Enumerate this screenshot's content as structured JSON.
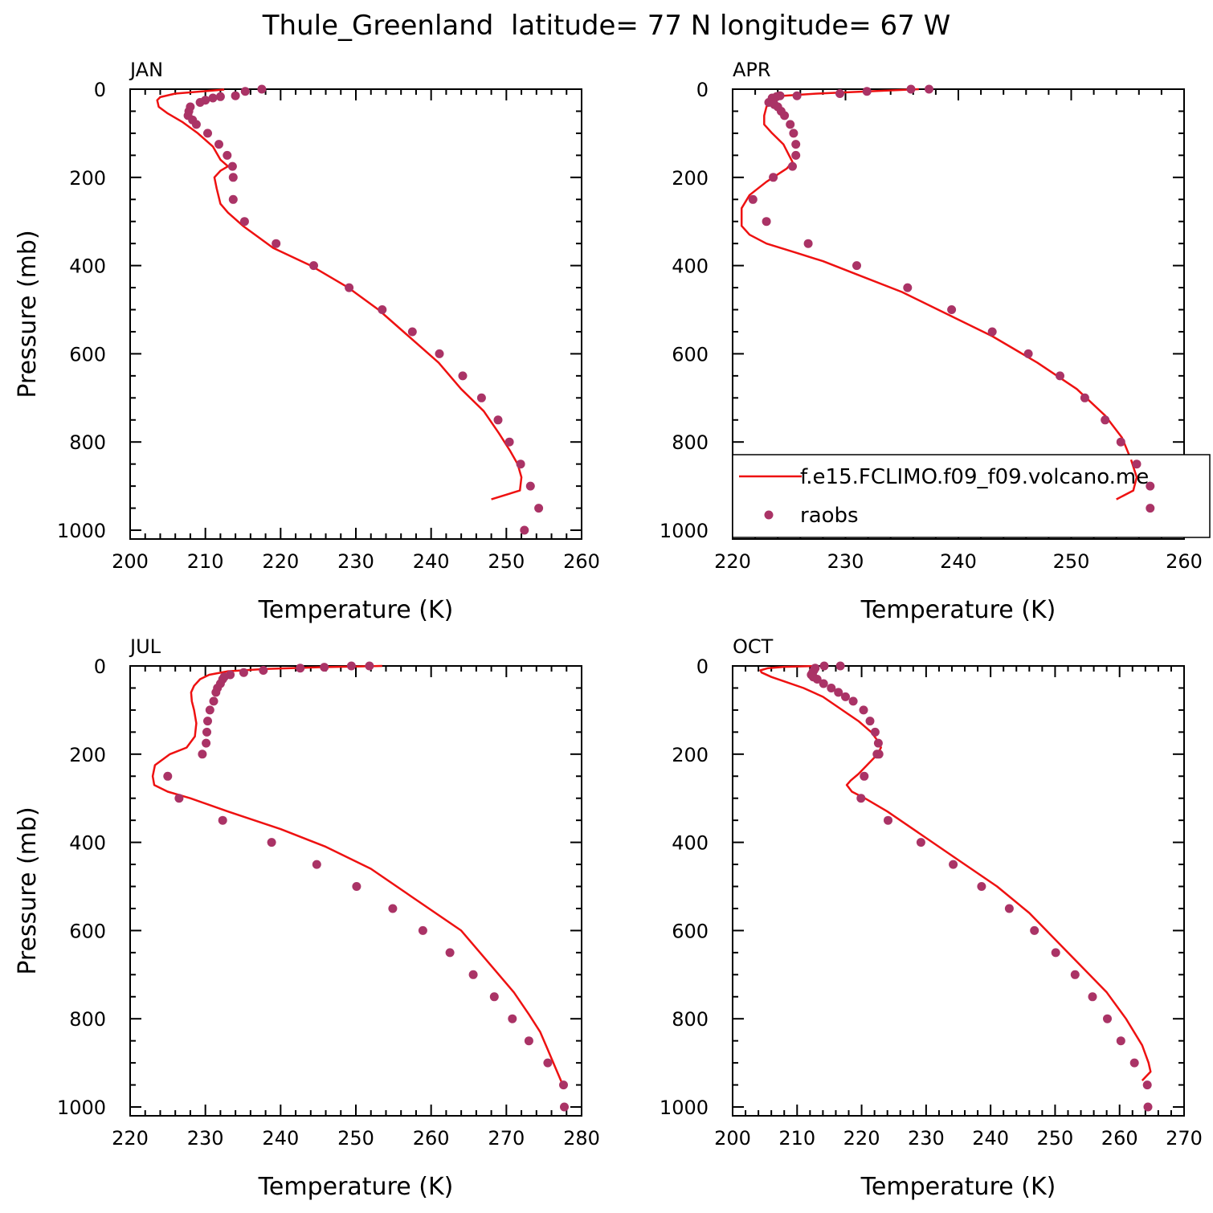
{
  "title": "Thule_Greenland  latitude= 77 N longitude= 67 W",
  "colors": {
    "model": "#ee1111",
    "obs": "#aa3366",
    "axis": "#000000"
  },
  "chart_data": [
    {
      "type": "line",
      "panel": "JAN",
      "xlabel": "Temperature (K)",
      "ylabel": "Pressure (mb)",
      "xlim": [
        200,
        260
      ],
      "ylim": [
        1020,
        0
      ],
      "xticks": [
        200,
        210,
        220,
        230,
        240,
        250,
        260
      ],
      "yticks": [
        0,
        200,
        400,
        600,
        800,
        1000
      ],
      "xtick_labels": [
        "200",
        "210",
        "220",
        "230",
        "240",
        "250",
        "260"
      ],
      "ytick_labels": [
        "0",
        "200",
        "400",
        "600",
        "800",
        "1000"
      ],
      "series": [
        {
          "name": "f.e15.FCLIMO.f09_f09.volcano.me",
          "kind": "line",
          "x": [
            212.5,
            206,
            204,
            203.6,
            203.8,
            205,
            207,
            209,
            211,
            212,
            213,
            212,
            211.2,
            211.5,
            212,
            213,
            215,
            219,
            224,
            229,
            233,
            237,
            241,
            244,
            247,
            249,
            250.5,
            251.5,
            252,
            251.8,
            248
          ],
          "y": [
            1,
            10,
            18,
            25,
            40,
            55,
            75,
            100,
            130,
            160,
            175,
            185,
            200,
            225,
            260,
            280,
            310,
            360,
            400,
            450,
            500,
            560,
            620,
            680,
            730,
            780,
            820,
            850,
            880,
            910,
            930
          ]
        },
        {
          "name": "raobs",
          "kind": "scatter",
          "x": [
            217.5,
            215.3,
            214,
            212,
            211,
            210,
            209.3,
            208,
            207.8,
            207.7,
            208.3,
            208.8,
            210.3,
            211.8,
            212.9,
            213.6,
            213.7,
            213.7,
            215.2,
            219.4,
            224.4,
            229.1,
            233.5,
            237.5,
            241.1,
            244.2,
            246.7,
            248.9,
            250.4,
            251.9,
            253.2,
            254.3,
            252.4
          ],
          "y": [
            0,
            5,
            15,
            17,
            20,
            25,
            30,
            40,
            50,
            60,
            70,
            80,
            100,
            125,
            150,
            175,
            200,
            250,
            300,
            350,
            400,
            450,
            500,
            550,
            600,
            650,
            700,
            750,
            800,
            850,
            900,
            950,
            1000
          ]
        }
      ]
    },
    {
      "type": "line",
      "panel": "APR",
      "xlabel": "Temperature (K)",
      "ylabel": "",
      "xlim": [
        220,
        260
      ],
      "ylim": [
        1020,
        0
      ],
      "xticks": [
        220,
        230,
        240,
        250,
        260
      ],
      "yticks": [
        0,
        200,
        400,
        600,
        800,
        1000
      ],
      "xtick_labels": [
        "220",
        "230",
        "240",
        "250",
        "260"
      ],
      "ytick_labels": [
        "0",
        "200",
        "400",
        "600",
        "800",
        "1000"
      ],
      "legend": {
        "position": "bottom-right",
        "entries": [
          "f.e15.FCLIMO.f09_f09.volcano.me",
          "raobs"
        ]
      },
      "series": [
        {
          "name": "f.e15.FCLIMO.f09_f09.volcano.me",
          "kind": "line",
          "x": [
            236.5,
            232,
            227.5,
            224.5,
            223.5,
            223,
            222.8,
            222.8,
            223.5,
            224.5,
            225,
            225.3,
            224.8,
            223,
            221.5,
            220.8,
            220.8,
            221.5,
            223,
            225.5,
            228,
            231,
            235,
            239,
            243,
            247,
            250.5,
            253,
            254.5,
            255.3,
            255.8,
            255.5,
            254
          ],
          "y": [
            0,
            5,
            10,
            15,
            25,
            40,
            60,
            80,
            100,
            125,
            150,
            165,
            180,
            210,
            240,
            270,
            310,
            330,
            350,
            370,
            390,
            420,
            460,
            510,
            560,
            620,
            680,
            740,
            790,
            840,
            880,
            910,
            930
          ]
        },
        {
          "name": "raobs",
          "kind": "scatter",
          "x": [
            237.4,
            235.8,
            231.9,
            229.5,
            225.7,
            224.2,
            223.9,
            223.6,
            223.2,
            223.5,
            223.7,
            224,
            224.3,
            224.6,
            225.1,
            225.4,
            225.6,
            225.6,
            225.3,
            223.6,
            221.8,
            223,
            226.7,
            231,
            235.5,
            239.4,
            243,
            246.2,
            249,
            251.2,
            253,
            254.4,
            255.8,
            257,
            257
          ],
          "y": [
            0,
            0,
            5,
            10,
            15,
            15,
            17,
            25,
            30,
            20,
            35,
            40,
            50,
            60,
            80,
            100,
            125,
            150,
            175,
            200,
            250,
            300,
            350,
            400,
            450,
            500,
            550,
            600,
            650,
            700,
            750,
            800,
            850,
            900,
            950
          ]
        }
      ]
    },
    {
      "type": "line",
      "panel": "JUL",
      "xlabel": "Temperature (K)",
      "ylabel": "Pressure (mb)",
      "xlim": [
        220,
        280
      ],
      "ylim": [
        1020,
        0
      ],
      "xticks": [
        220,
        230,
        240,
        250,
        260,
        270,
        280
      ],
      "yticks": [
        0,
        200,
        400,
        600,
        800,
        1000
      ],
      "xtick_labels": [
        "220",
        "230",
        "240",
        "250",
        "260",
        "270",
        "280"
      ],
      "ytick_labels": [
        "0",
        "200",
        "400",
        "600",
        "800",
        "1000"
      ],
      "series": [
        {
          "name": "f.e15.FCLIMO.f09_f09.volcano.me",
          "kind": "line",
          "x": [
            253.5,
            245,
            238,
            233,
            230.5,
            229.3,
            228.5,
            228.1,
            228.2,
            228.5,
            228.8,
            228.6,
            227.5,
            225.3,
            223.3,
            223,
            223.2,
            225,
            228,
            233,
            240,
            246,
            252,
            258,
            264,
            268,
            271,
            273,
            274.5,
            275.5,
            276.5,
            277.5
          ],
          "y": [
            0,
            3,
            7,
            12,
            20,
            30,
            45,
            60,
            80,
            100,
            130,
            160,
            185,
            200,
            225,
            250,
            270,
            285,
            300,
            330,
            370,
            410,
            460,
            530,
            600,
            680,
            740,
            790,
            830,
            870,
            910,
            950
          ]
        },
        {
          "name": "raobs",
          "kind": "scatter",
          "x": [
            251.8,
            249.4,
            245.8,
            242.6,
            237.7,
            235.1,
            233.3,
            232.5,
            232.3,
            232,
            231.6,
            231.4,
            231.1,
            230.6,
            230.3,
            230.2,
            230.1,
            229.6,
            225,
            226.5,
            232.3,
            238.8,
            244.8,
            250.1,
            254.9,
            258.9,
            262.5,
            265.6,
            268.4,
            270.8,
            273,
            275.5,
            277.6,
            277.7
          ],
          "y": [
            0,
            0,
            3,
            5,
            10,
            15,
            20,
            25,
            30,
            40,
            50,
            60,
            80,
            100,
            125,
            150,
            175,
            200,
            250,
            300,
            350,
            400,
            450,
            500,
            550,
            600,
            650,
            700,
            750,
            800,
            850,
            900,
            950,
            1000
          ]
        }
      ]
    },
    {
      "type": "line",
      "panel": "OCT",
      "xlabel": "Temperature (K)",
      "ylabel": "",
      "xlim": [
        200,
        270
      ],
      "ylim": [
        1020,
        0
      ],
      "xticks": [
        200,
        210,
        220,
        230,
        240,
        250,
        260,
        270
      ],
      "yticks": [
        0,
        200,
        400,
        600,
        800,
        1000
      ],
      "xtick_labels": [
        "200",
        "210",
        "220",
        "230",
        "240",
        "250",
        "260",
        "270"
      ],
      "ytick_labels": [
        "0",
        "200",
        "400",
        "600",
        "800",
        "1000"
      ],
      "series": [
        {
          "name": "f.e15.FCLIMO.f09_f09.volcano.me",
          "kind": "line",
          "x": [
            213,
            208,
            205.5,
            204.3,
            204.5,
            206,
            208,
            211,
            214,
            217,
            219.5,
            221.5,
            222.5,
            223,
            222.5,
            221.5,
            220.5,
            219.5,
            218.3,
            217.7,
            218.5,
            220.5,
            224,
            229,
            235,
            241,
            246,
            250,
            254,
            258,
            261,
            263.5,
            264.5,
            264.8,
            263.5
          ],
          "y": [
            0,
            2,
            5,
            10,
            15,
            25,
            35,
            50,
            70,
            100,
            125,
            150,
            170,
            185,
            200,
            215,
            230,
            245,
            260,
            270,
            285,
            300,
            330,
            380,
            440,
            500,
            560,
            620,
            680,
            740,
            800,
            860,
            900,
            920,
            940
          ]
        },
        {
          "name": "raobs",
          "kind": "scatter",
          "x": [
            216.7,
            214.2,
            212.8,
            212.6,
            212.4,
            212.2,
            212.5,
            213.1,
            214.1,
            215.3,
            216.4,
            217.5,
            218.7,
            220.3,
            221.3,
            222.1,
            222.6,
            222.7,
            222.4,
            220.4,
            219.9,
            224.1,
            229.2,
            234.2,
            238.6,
            242.9,
            246.8,
            250.1,
            253.1,
            255.8,
            258.1,
            260.2,
            262.3,
            264.3,
            264.4
          ],
          "y": [
            0,
            0,
            5,
            10,
            15,
            20,
            25,
            30,
            40,
            50,
            60,
            70,
            80,
            100,
            125,
            150,
            175,
            200,
            200,
            250,
            300,
            350,
            400,
            450,
            500,
            550,
            600,
            650,
            700,
            750,
            800,
            850,
            900,
            950,
            1000
          ]
        }
      ]
    }
  ]
}
